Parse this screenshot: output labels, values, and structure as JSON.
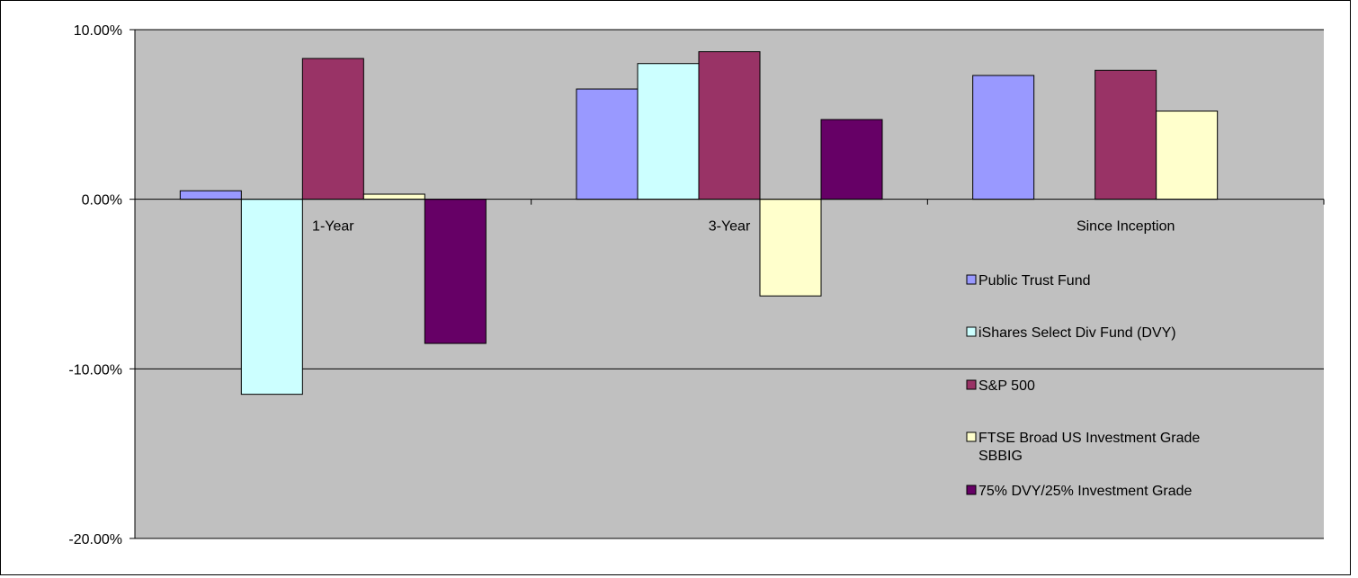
{
  "chart_data": {
    "type": "bar",
    "title": "",
    "xlabel": "",
    "ylabel": "",
    "categories": [
      "1-Year",
      "3-Year",
      "Since Inception"
    ],
    "ylim": [
      -0.2,
      0.1
    ],
    "yticks": [
      0.1,
      0.0,
      -0.1,
      -0.2
    ],
    "ytick_labels": [
      "10.00%",
      "0.00%",
      "-10.00%",
      "-20.00%"
    ],
    "grid": "horizontal",
    "legend_position": "right",
    "plot_background": "#c0c0c0",
    "series": [
      {
        "name": "Public Trust Fund",
        "color": "#9999ff",
        "values": [
          0.005,
          0.065,
          0.073
        ]
      },
      {
        "name": "iShares Select Div Fund (DVY)",
        "color": "#ccffff",
        "values": [
          -0.115,
          0.08,
          null
        ]
      },
      {
        "name": "S&P 500",
        "color": "#993366",
        "values": [
          0.083,
          0.087,
          0.076
        ]
      },
      {
        "name": "FTSE Broad US Investment Grade SBBIG",
        "color": "#ffffcc",
        "values": [
          0.003,
          -0.057,
          0.052
        ]
      },
      {
        "name": "75% DVY/25% Investment Grade",
        "color": "#660066",
        "values": [
          -0.085,
          0.047,
          null
        ]
      }
    ]
  }
}
